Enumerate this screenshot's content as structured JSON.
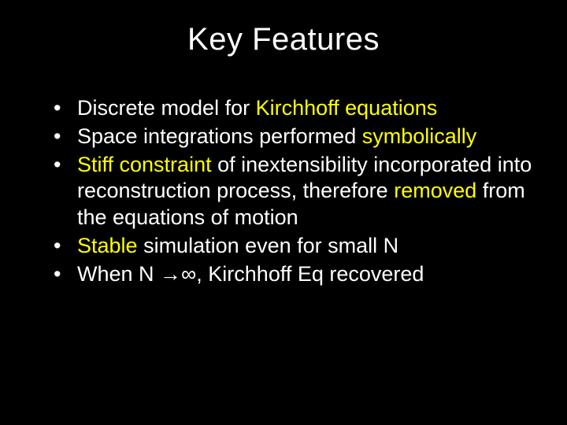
{
  "slide": {
    "background_color": "#000000",
    "text_color": "#ffffff",
    "highlight_color": "#ffff00",
    "title": "Key Features",
    "title_fontsize": 40,
    "body_fontsize": 27,
    "bullets": [
      {
        "segments": [
          {
            "text": "Discrete model for ",
            "highlight": false
          },
          {
            "text": "Kirchhoff equations",
            "highlight": true
          }
        ]
      },
      {
        "segments": [
          {
            "text": "Space integrations performed ",
            "highlight": false
          },
          {
            "text": "symbolically",
            "highlight": true
          }
        ]
      },
      {
        "segments": [
          {
            "text": "Stiff constraint",
            "highlight": true
          },
          {
            "text": " of inextensibility incorporated into reconstruction process, therefore ",
            "highlight": false
          },
          {
            "text": "removed",
            "highlight": true
          },
          {
            "text": " from the equations of motion",
            "highlight": false
          }
        ]
      },
      {
        "segments": [
          {
            "text": "Stable",
            "highlight": true
          },
          {
            "text": " simulation even for small N",
            "highlight": false
          }
        ]
      },
      {
        "segments": [
          {
            "text": "When N →∞, Kirchhoff Eq recovered",
            "highlight": false
          }
        ]
      }
    ]
  }
}
